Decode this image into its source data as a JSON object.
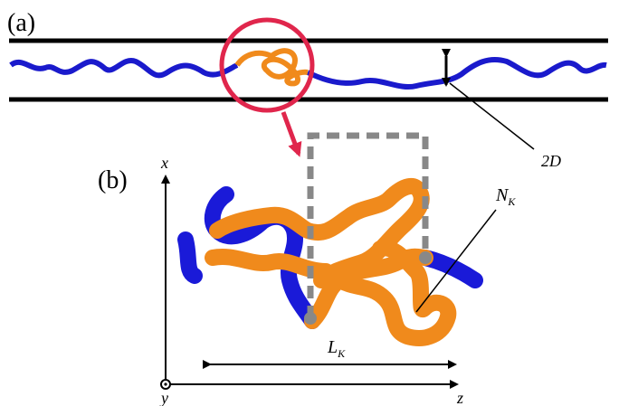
{
  "panel_a": {
    "label": "(a)",
    "width_label": "2D"
  },
  "panel_b": {
    "label": "(b)",
    "axes": {
      "x": "x",
      "y": "y",
      "z": "z"
    },
    "knot_length": {
      "symbol": "L",
      "subscript": "K"
    },
    "knot_size": {
      "symbol": "N",
      "subscript": "K"
    }
  }
}
